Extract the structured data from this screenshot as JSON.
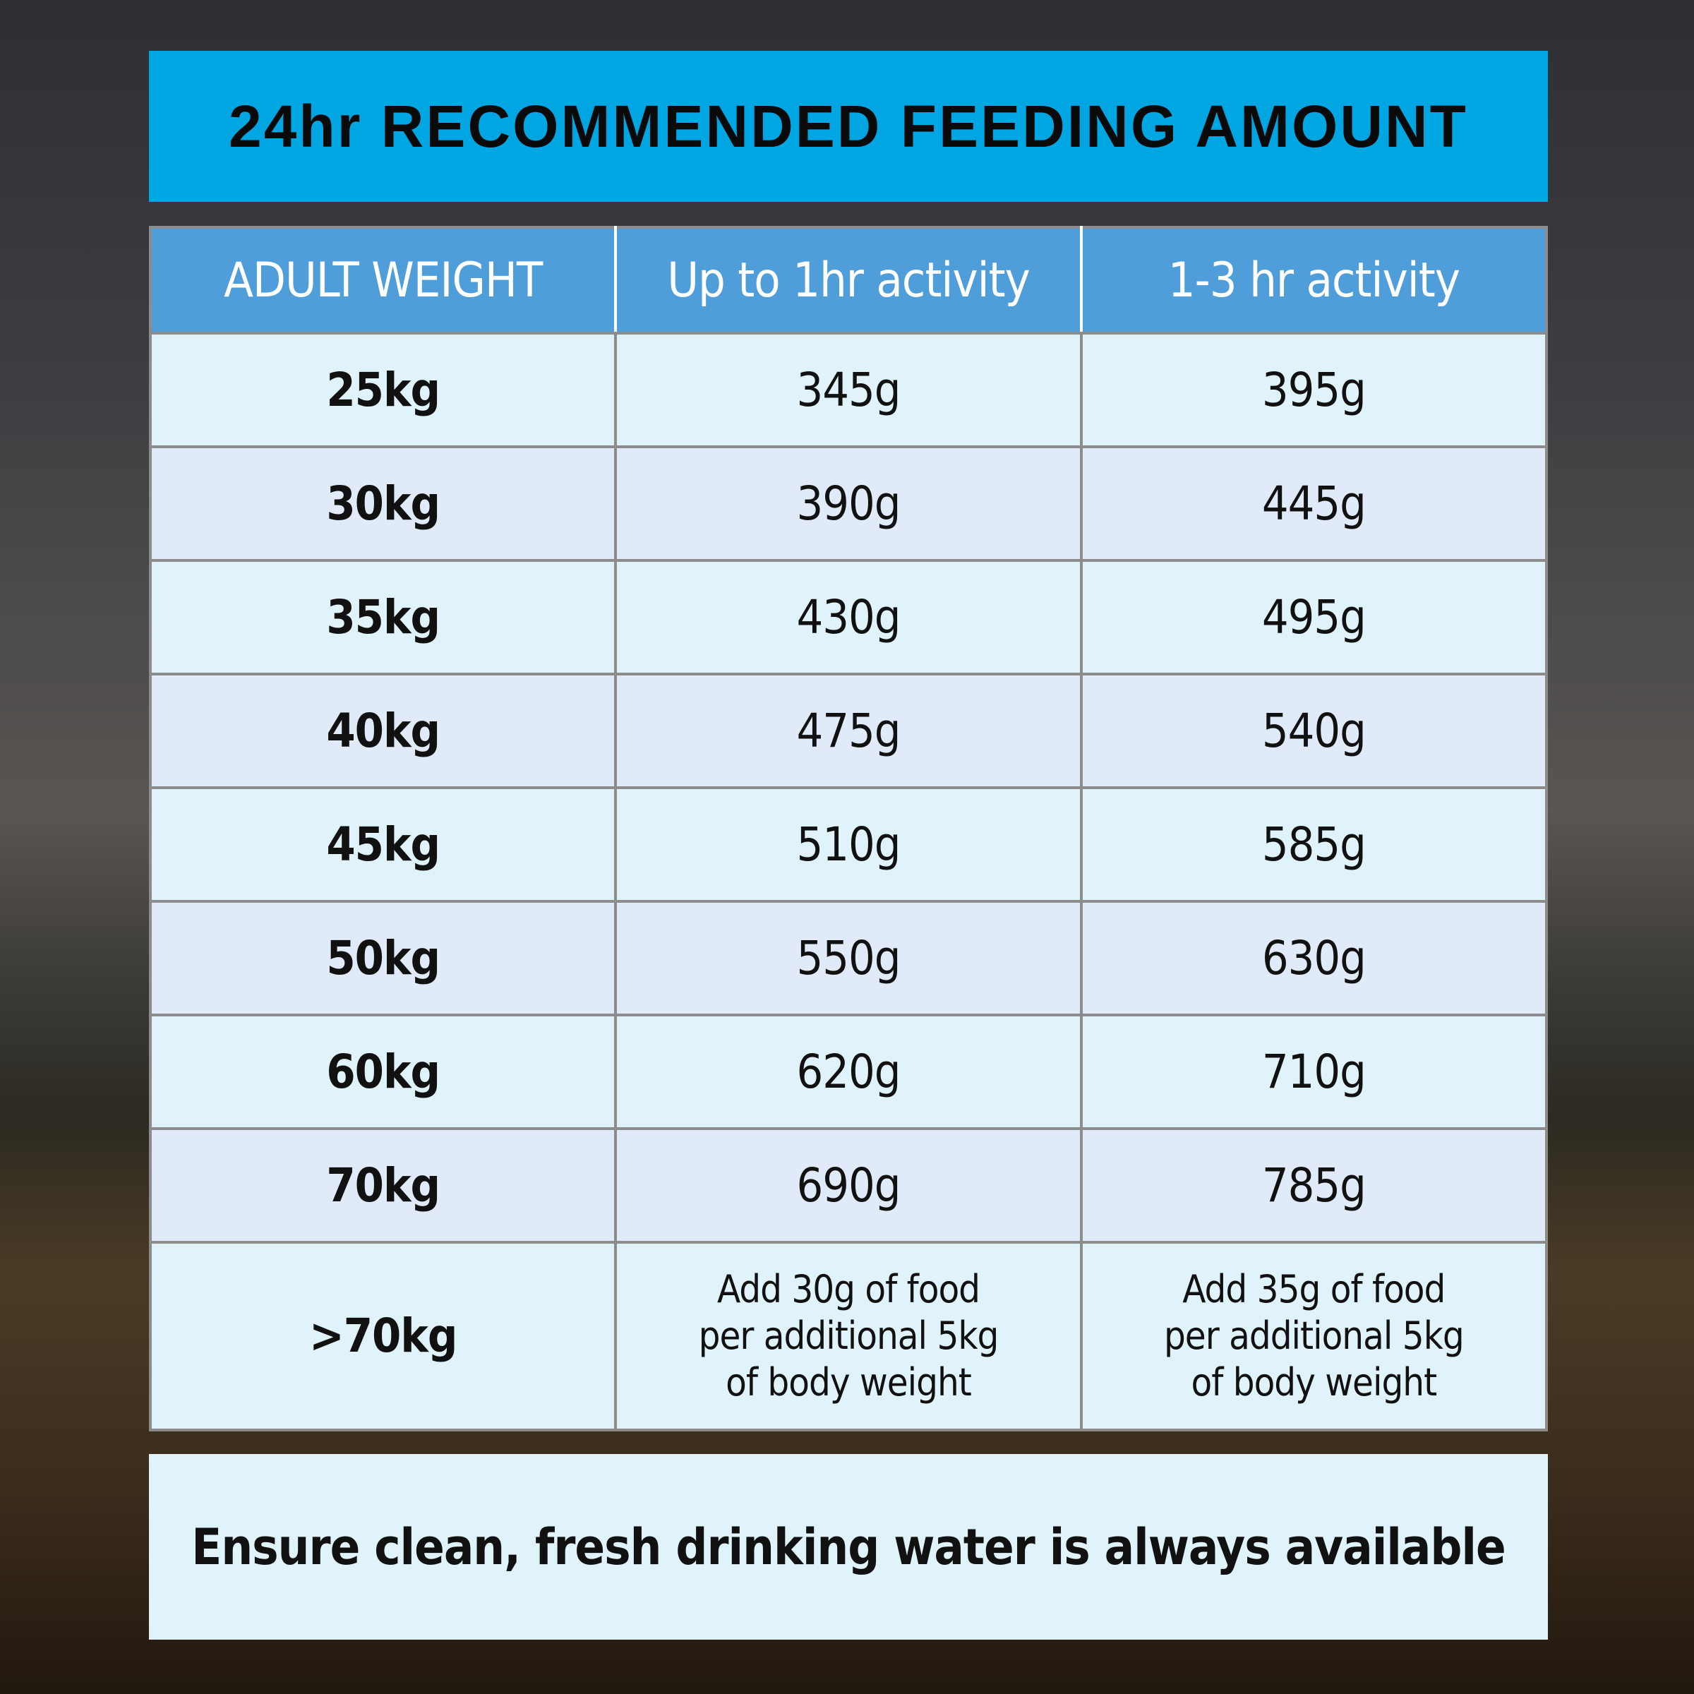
{
  "title": "24hr RECOMMENDED FEEDING AMOUNT",
  "colors": {
    "title_bar": "#00a6e2",
    "header_row": "#4f9ed9",
    "row_light": "#e0f2fa",
    "row_alt": "#e0eaf8"
  },
  "table": {
    "headers": [
      "ADULT WEIGHT",
      "Up to 1hr activity",
      "1-3 hr activity"
    ],
    "rows": [
      [
        "25kg",
        "345g",
        "395g"
      ],
      [
        "30kg",
        "390g",
        "445g"
      ],
      [
        "35kg",
        "430g",
        "495g"
      ],
      [
        "40kg",
        "475g",
        "540g"
      ],
      [
        "45kg",
        "510g",
        "585g"
      ],
      [
        "50kg",
        "550g",
        "630g"
      ],
      [
        "60kg",
        "620g",
        "710g"
      ],
      [
        "70kg",
        "690g",
        "785g"
      ]
    ],
    "extra_row": {
      "weight": ">70kg",
      "up_to_1hr": [
        "Add 30g of food",
        "per additional 5kg",
        "of body weight"
      ],
      "one_to_3hr": [
        "Add 35g of food",
        "per additional 5kg",
        "of body weight"
      ]
    }
  },
  "footer": "Ensure clean, fresh drinking water is always available"
}
